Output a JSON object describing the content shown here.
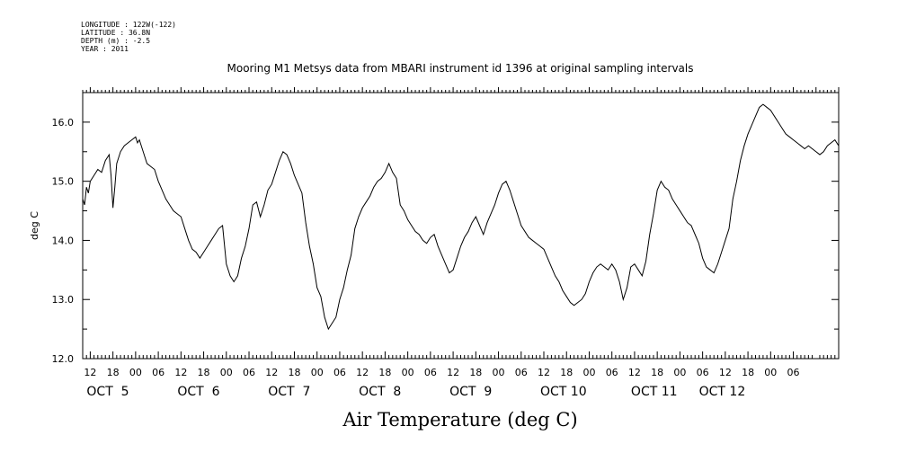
{
  "header": {
    "longitude": "LONGITUDE : 122W(-122)",
    "latitude": "LATITUDE : 36.8N",
    "depth": "DEPTH (m) : -2.5",
    "year": "YEAR : 2011"
  },
  "chart_data": {
    "type": "line",
    "title": "Mooring M1 Metsys data from MBARI instrument id 1396 at original sampling intervals",
    "xlabel": "Air Temperature (deg C)",
    "ylabel": "deg C",
    "xlim": [
      10,
      210
    ],
    "ylim": [
      12.0,
      16.5
    ],
    "x_unit": "hours since Oct 5 00:00, 2011",
    "yticks": [
      "12.0",
      "13.0",
      "14.0",
      "15.0",
      "16.0"
    ],
    "hour_ticks": [
      {
        "x": 12,
        "label": "12"
      },
      {
        "x": 18,
        "label": "18"
      },
      {
        "x": 24,
        "label": "00"
      },
      {
        "x": 30,
        "label": "06"
      },
      {
        "x": 36,
        "label": "12"
      },
      {
        "x": 42,
        "label": "18"
      },
      {
        "x": 48,
        "label": "00"
      },
      {
        "x": 54,
        "label": "06"
      },
      {
        "x": 60,
        "label": "12"
      },
      {
        "x": 66,
        "label": "18"
      },
      {
        "x": 72,
        "label": "00"
      },
      {
        "x": 78,
        "label": "06"
      },
      {
        "x": 84,
        "label": "12"
      },
      {
        "x": 90,
        "label": "18"
      },
      {
        "x": 96,
        "label": "00"
      },
      {
        "x": 102,
        "label": "06"
      },
      {
        "x": 108,
        "label": "12"
      },
      {
        "x": 114,
        "label": "18"
      },
      {
        "x": 120,
        "label": "00"
      },
      {
        "x": 126,
        "label": "06"
      },
      {
        "x": 132,
        "label": "12"
      },
      {
        "x": 138,
        "label": "18"
      },
      {
        "x": 144,
        "label": "00"
      },
      {
        "x": 150,
        "label": "06"
      },
      {
        "x": 156,
        "label": "12"
      },
      {
        "x": 162,
        "label": "18"
      },
      {
        "x": 168,
        "label": "00"
      },
      {
        "x": 174,
        "label": "06"
      },
      {
        "x": 180,
        "label": "12"
      },
      {
        "x": 186,
        "label": "18"
      },
      {
        "x": 192,
        "label": "00"
      },
      {
        "x": 198,
        "label": "06"
      }
    ],
    "day_labels": [
      {
        "x": 12,
        "label": "OCT  5"
      },
      {
        "x": 36,
        "label": "OCT  6"
      },
      {
        "x": 60,
        "label": "OCT  7"
      },
      {
        "x": 84,
        "label": "OCT  8"
      },
      {
        "x": 108,
        "label": "OCT  9"
      },
      {
        "x": 132,
        "label": "OCT 10"
      },
      {
        "x": 156,
        "label": "OCT 11"
      },
      {
        "x": 174,
        "label": "OCT 12"
      }
    ],
    "series": [
      {
        "x": [
          10.0,
          10.5,
          11.0,
          11.5,
          12.0,
          13.0,
          14.0,
          15.0,
          16.0,
          17.0,
          17.5,
          18.0,
          18.5,
          19.0,
          20.0,
          21.0,
          22.0,
          23.0,
          24.0,
          24.5,
          25.0,
          26.0,
          27.0,
          28.0,
          29.0,
          30.0,
          31.0,
          32.0,
          33.0,
          34.0,
          35.0,
          36.0,
          37.0,
          38.0,
          39.0,
          40.0,
          41.0,
          42.0,
          43.0,
          44.0,
          45.0,
          46.0,
          47.0,
          48.0,
          49.0,
          50.0,
          51.0,
          52.0,
          53.0,
          54.0,
          55.0,
          56.0,
          57.0,
          58.0,
          59.0,
          60.0,
          61.0,
          62.0,
          63.0,
          64.0,
          65.0,
          66.0,
          67.0,
          68.0,
          69.0,
          70.0,
          71.0,
          72.0,
          73.0,
          74.0,
          75.0,
          76.0,
          77.0,
          78.0,
          79.0,
          80.0,
          81.0,
          82.0,
          83.0,
          84.0,
          85.0,
          86.0,
          87.0,
          88.0,
          89.0,
          90.0,
          91.0,
          92.0,
          93.0,
          94.0,
          95.0,
          96.0,
          97.0,
          98.0,
          99.0,
          100.0,
          101.0,
          102.0,
          103.0,
          104.0,
          105.0,
          106.0,
          107.0,
          108.0,
          109.0,
          110.0,
          111.0,
          112.0,
          113.0,
          114.0,
          115.0,
          116.0,
          117.0,
          118.0,
          119.0,
          120.0,
          121.0,
          122.0,
          123.0,
          124.0,
          125.0,
          126.0,
          127.0,
          128.0,
          129.0,
          130.0,
          131.0,
          132.0,
          133.0,
          134.0,
          135.0,
          136.0,
          137.0,
          138.0,
          139.0,
          140.0,
          141.0,
          142.0,
          143.0,
          144.0,
          145.0,
          146.0,
          147.0,
          148.0,
          149.0,
          150.0,
          151.0,
          152.0,
          153.0,
          154.0,
          155.0,
          156.0,
          157.0,
          158.0,
          159.0,
          160.0,
          161.0,
          162.0,
          163.0,
          164.0,
          165.0,
          166.0,
          167.0,
          168.0,
          169.0,
          170.0,
          171.0,
          172.0,
          173.0,
          174.0,
          175.0,
          176.0,
          177.0,
          178.0,
          179.0,
          180.0,
          181.0,
          182.0,
          183.0,
          184.0,
          185.0,
          186.0,
          187.0,
          188.0,
          189.0,
          190.0,
          191.0,
          192.0,
          193.0,
          194.0,
          195.0,
          196.0,
          197.0,
          198.0,
          199.0,
          200.0,
          201.0,
          202.0,
          203.0,
          204.0,
          205.0,
          206.0,
          207.0,
          208.0,
          209.0,
          210.0
        ],
        "values": [
          14.7,
          14.6,
          14.9,
          14.8,
          15.0,
          15.1,
          15.2,
          15.15,
          15.35,
          15.45,
          15.1,
          14.55,
          14.9,
          15.3,
          15.5,
          15.6,
          15.65,
          15.7,
          15.75,
          15.65,
          15.7,
          15.5,
          15.3,
          15.25,
          15.2,
          15.0,
          14.85,
          14.7,
          14.6,
          14.5,
          14.45,
          14.4,
          14.2,
          14.0,
          13.85,
          13.8,
          13.7,
          13.8,
          13.9,
          14.0,
          14.1,
          14.2,
          14.25,
          13.6,
          13.4,
          13.3,
          13.4,
          13.7,
          13.9,
          14.2,
          14.6,
          14.65,
          14.4,
          14.6,
          14.85,
          14.95,
          15.15,
          15.35,
          15.5,
          15.45,
          15.3,
          15.1,
          14.95,
          14.8,
          14.3,
          13.9,
          13.6,
          13.2,
          13.05,
          12.7,
          12.5,
          12.6,
          12.7,
          13.0,
          13.2,
          13.5,
          13.75,
          14.2,
          14.4,
          14.55,
          14.65,
          14.75,
          14.9,
          15.0,
          15.05,
          15.15,
          15.3,
          15.15,
          15.05,
          14.6,
          14.5,
          14.35,
          14.25,
          14.15,
          14.1,
          14.0,
          13.95,
          14.05,
          14.1,
          13.9,
          13.75,
          13.6,
          13.45,
          13.5,
          13.7,
          13.9,
          14.05,
          14.15,
          14.3,
          14.4,
          14.25,
          14.1,
          14.3,
          14.45,
          14.6,
          14.8,
          14.95,
          15.0,
          14.85,
          14.65,
          14.45,
          14.25,
          14.15,
          14.05,
          14.0,
          13.95,
          13.9,
          13.85,
          13.7,
          13.55,
          13.4,
          13.3,
          13.15,
          13.05,
          12.95,
          12.9,
          12.95,
          13.0,
          13.1,
          13.3,
          13.45,
          13.55,
          13.6,
          13.55,
          13.5,
          13.6,
          13.5,
          13.3,
          13.0,
          13.2,
          13.55,
          13.6,
          13.5,
          13.4,
          13.65,
          14.1,
          14.45,
          14.85,
          15.0,
          14.9,
          14.85,
          14.7,
          14.6,
          14.5,
          14.4,
          14.3,
          14.25,
          14.1,
          13.95,
          13.7,
          13.55,
          13.5,
          13.45,
          13.6,
          13.8,
          14.0,
          14.2,
          14.7,
          15.0,
          15.35,
          15.6,
          15.8,
          15.95,
          16.1,
          16.25,
          16.3,
          16.25,
          16.2,
          16.1,
          16.0,
          15.9,
          15.8,
          15.75,
          15.7,
          15.65,
          15.6,
          15.55,
          15.6,
          15.55,
          15.5,
          15.45,
          15.5,
          15.6,
          15.65,
          15.7,
          15.6
        ]
      }
    ]
  }
}
